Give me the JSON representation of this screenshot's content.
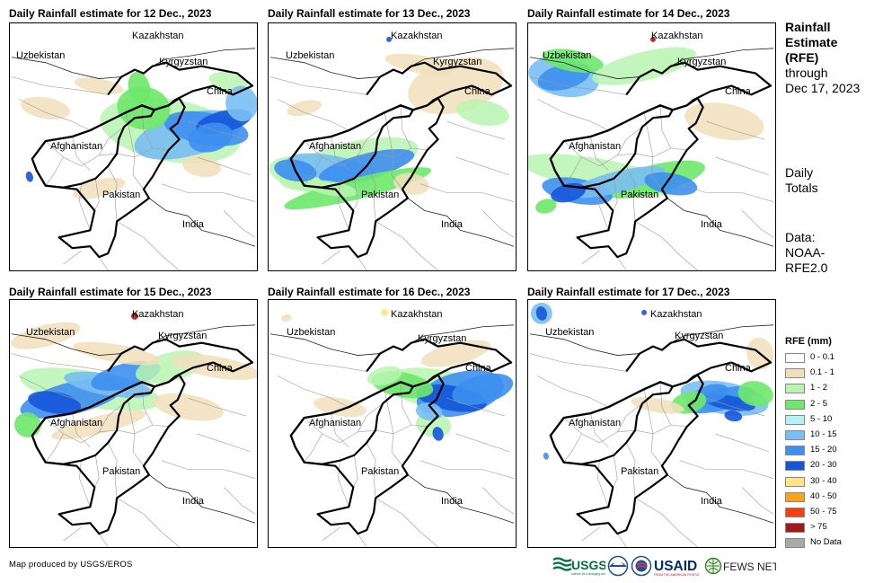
{
  "panels": [
    {
      "title": "Daily Rainfall estimate for 12 Dec., 2023"
    },
    {
      "title": "Daily Rainfall estimate for 13 Dec., 2023"
    },
    {
      "title": "Daily Rainfall estimate for 14 Dec., 2023"
    },
    {
      "title": "Daily Rainfall estimate for 15 Dec., 2023"
    },
    {
      "title": "Daily Rainfall estimate for 16 Dec., 2023"
    },
    {
      "title": "Daily Rainfall estimate for 17 Dec., 2023"
    }
  ],
  "countries": {
    "kazakhstan": "Kazakhstan",
    "uzbekistan": "Uzbekistan",
    "kyrgyzstan": "Kyrgyzstan",
    "china": "China",
    "afghanistan": "Afghanistan",
    "pakistan": "Pakistan",
    "india": "India"
  },
  "side": {
    "title_l1": "Rainfall",
    "title_l2": "Estimate",
    "title_l3": "(RFE)",
    "title_l4": "through",
    "title_l5": "Dec 17, 2023",
    "daily_l1": "Daily",
    "daily_l2": "Totals",
    "data_l1": "Data:",
    "data_l2": "NOAA-",
    "data_l3": "RFE2.0"
  },
  "legend": {
    "title": "RFE (mm)",
    "items": [
      {
        "label": "0 - 0.1",
        "color": "#ffffff"
      },
      {
        "label": "0.1 - 1",
        "color": "#f1dfbb"
      },
      {
        "label": "1 - 2",
        "color": "#b9f5b0"
      },
      {
        "label": "2 - 5",
        "color": "#6ee86a"
      },
      {
        "label": "5 - 10",
        "color": "#b5f2f8"
      },
      {
        "label": "10 - 15",
        "color": "#79bff3"
      },
      {
        "label": "15 - 20",
        "color": "#3d8ff0"
      },
      {
        "label": "20 - 30",
        "color": "#1556d8"
      },
      {
        "label": "30 - 40",
        "color": "#fde687"
      },
      {
        "label": "40 - 50",
        "color": "#fba21b"
      },
      {
        "label": "50 - 75",
        "color": "#f93d0e"
      },
      {
        "label": "> 75",
        "color": "#a51818"
      },
      {
        "label": "No Data",
        "color": "#a9a9a9"
      }
    ]
  },
  "credit": "Map produced by USGS/EROS",
  "logos": {
    "usgs": "USGS",
    "usaid": "USAID",
    "fewsnet": "FEWS NET"
  }
}
